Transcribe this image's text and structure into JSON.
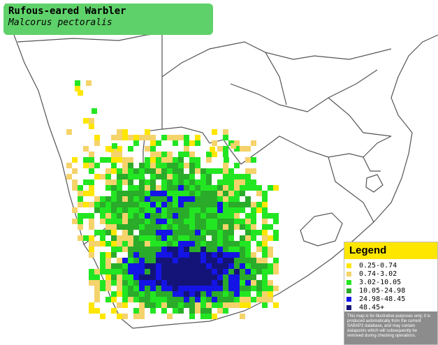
{
  "title": {
    "common_name": "Rufous-eared Warbler",
    "scientific_name": "Malcorus pectoralis",
    "box_color": "#5fd16a"
  },
  "legend": {
    "heading": "Legend",
    "heading_color": "#ffe600",
    "items": [
      {
        "label": "0.25-0.74",
        "color": "#ffe600"
      },
      {
        "label": "0.74-3.02",
        "color": "#f5d36b"
      },
      {
        "label": "3.02-10.05",
        "color": "#22e622"
      },
      {
        "label": "10.05-24.98",
        "color": "#2aab2a"
      },
      {
        "label": "24.98-48.45",
        "color": "#1414e6"
      },
      {
        "label": "48.45+",
        "color": "#141478"
      }
    ],
    "disclaimer": "This map is for illustrative purposes only; it is produced automatically from the current SABAP2 database, and may contain datapoints which will subsequently be removed during checking operations."
  },
  "map": {
    "land_color": "#ffffff",
    "border_color": "#555555",
    "region": "Southern Africa"
  }
}
